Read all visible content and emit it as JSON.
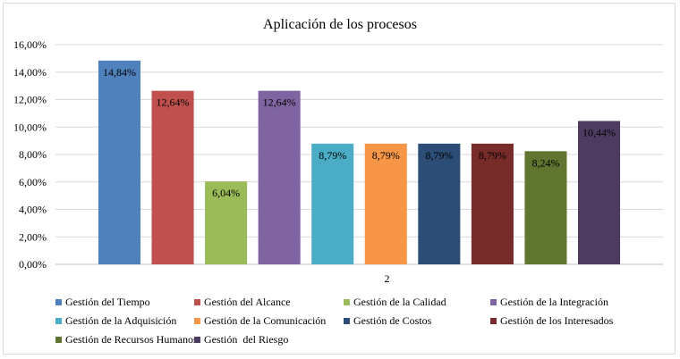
{
  "chart_data": {
    "type": "bar",
    "title": "Aplicación de los procesos",
    "categories": [
      "2"
    ],
    "ylim": [
      0,
      16
    ],
    "y_ticks": [
      "0,00%",
      "2,00%",
      "4,00%",
      "6,00%",
      "8,00%",
      "10,00%",
      "12,00%",
      "14,00%",
      "16,00%"
    ],
    "y_tick_values": [
      0,
      2,
      4,
      6,
      8,
      10,
      12,
      14,
      16
    ],
    "grid": true,
    "legend_position": "bottom",
    "series": [
      {
        "name": "Gestión del Tiempo",
        "values": [
          14.84
        ],
        "label": "14,84%",
        "color": "#4f81bd"
      },
      {
        "name": "Gestión del Alcance",
        "values": [
          12.64
        ],
        "label": "12,64%",
        "color": "#c0504d"
      },
      {
        "name": "Gestión de la Calidad",
        "values": [
          6.04
        ],
        "label": "6,04%",
        "color": "#9bbb59"
      },
      {
        "name": "Gestión de la Integración",
        "values": [
          12.64
        ],
        "label": "12,64%",
        "color": "#8064a2"
      },
      {
        "name": "Gestión de la Adquisición",
        "values": [
          8.79
        ],
        "label": "8,79%",
        "color": "#4bacc6"
      },
      {
        "name": "Gestión de la Comunicación",
        "values": [
          8.79
        ],
        "label": "8,79%",
        "color": "#f79646"
      },
      {
        "name": "Gestión de Costos",
        "values": [
          8.79
        ],
        "label": "8,79%",
        "color": "#2c4d75"
      },
      {
        "name": "Gestión de los Interesados",
        "values": [
          8.79
        ],
        "label": "8,79%",
        "color": "#772c2a"
      },
      {
        "name": "Gestión de Recursos Humanos",
        "values": [
          8.24
        ],
        "label": "8,24%",
        "color": "#5f7530"
      },
      {
        "name": "Gestión  del Riesgo",
        "values": [
          10.44
        ],
        "label": "10,44%",
        "color": "#4d3b62"
      }
    ]
  }
}
